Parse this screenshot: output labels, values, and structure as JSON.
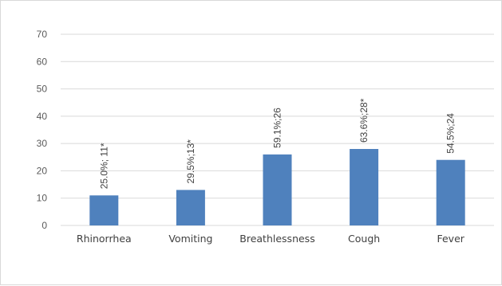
{
  "chart_data": {
    "type": "bar",
    "title": "",
    "xlabel": "",
    "ylabel": "",
    "categories": [
      "Rhinorrhea",
      "Vomiting",
      "Breathlessness",
      "Cough",
      "Fever"
    ],
    "values": [
      11,
      13,
      26,
      28,
      24
    ],
    "data_labels": [
      "25.0%; 11*",
      "29.5%;13*",
      "59.1%;26",
      "63.6%;28*",
      "54.5%;24"
    ],
    "ylim": [
      0,
      70
    ],
    "yticks": [
      0,
      10,
      20,
      30,
      40,
      50,
      60,
      70
    ],
    "grid": true,
    "legend": "none",
    "bar_color": "#4f81bd",
    "grid_color": "#d9d9d9"
  }
}
